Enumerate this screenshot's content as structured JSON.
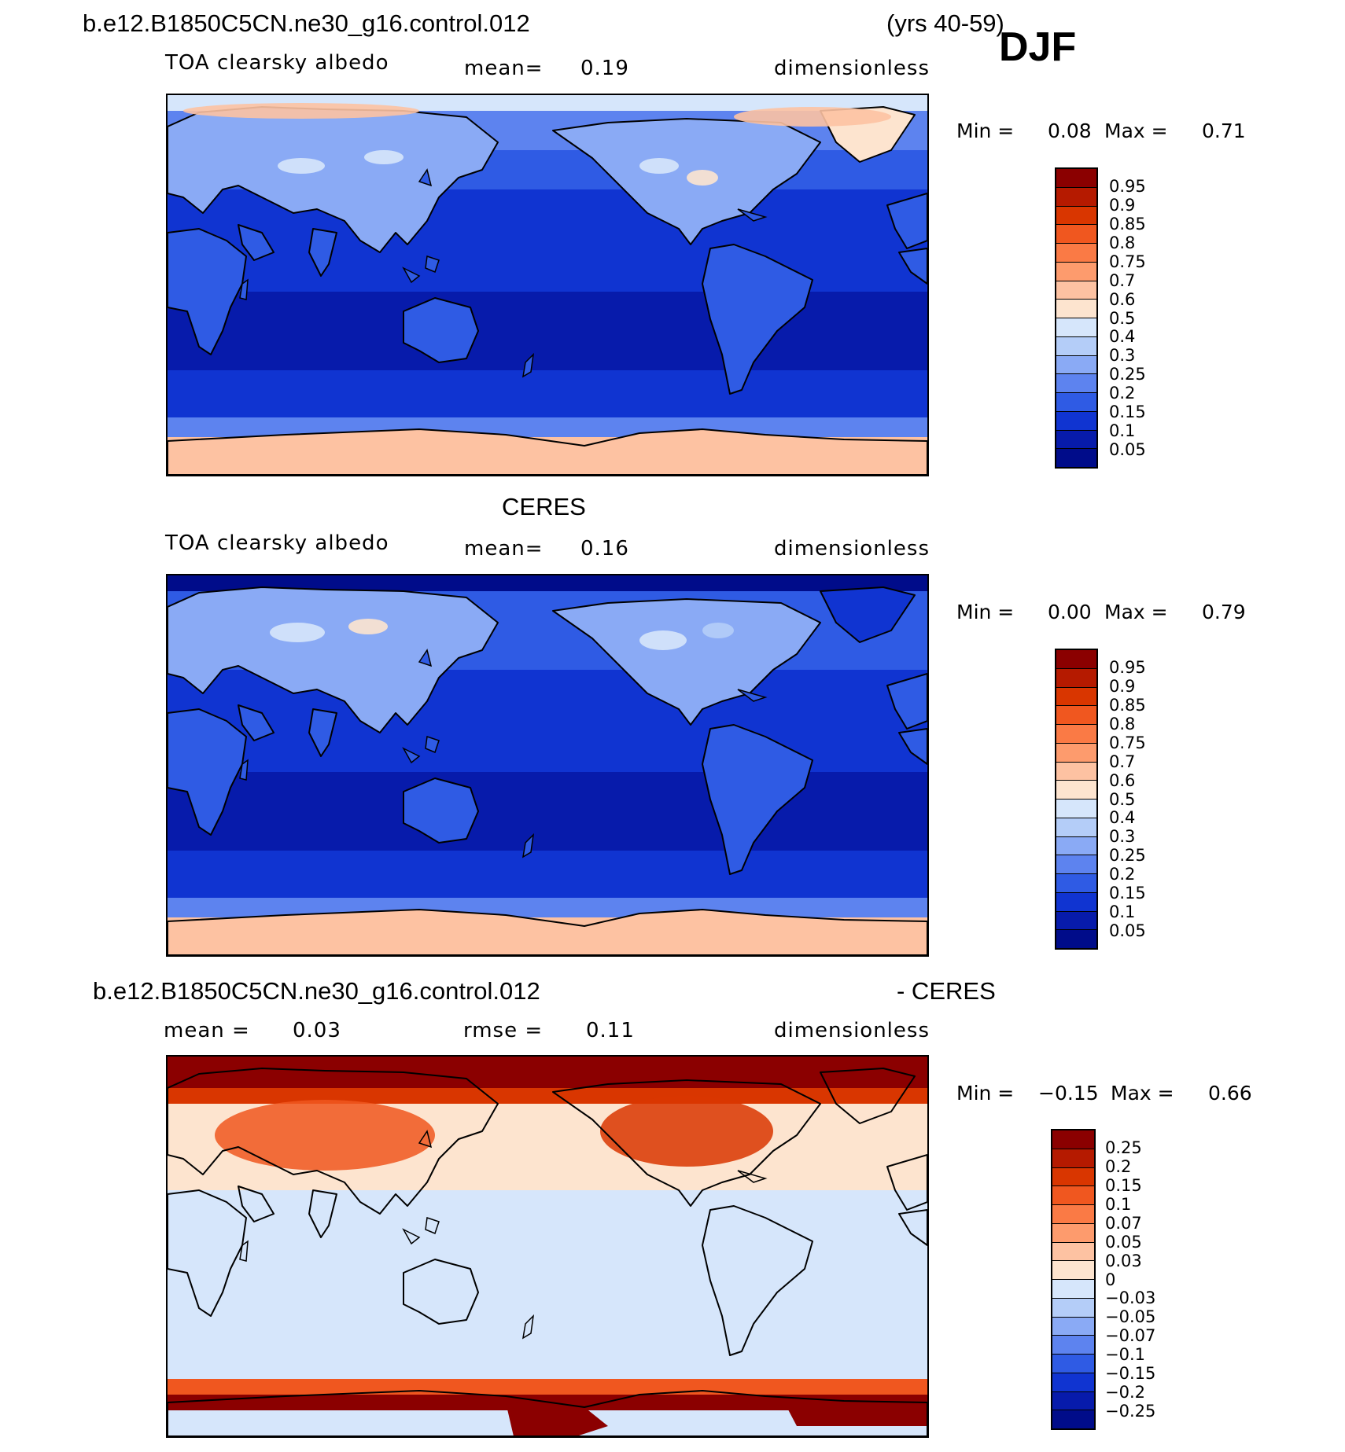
{
  "header": {
    "case_title": "b.e12.B1850C5CN.ne30_g16.control.012",
    "years": "(yrs 40-59)",
    "season": "DJF"
  },
  "panels": [
    {
      "id": "model",
      "heading": "",
      "variable": "TOA clearsky albedo",
      "stat1_label": "mean=",
      "stat1_value": "0.19",
      "stat2_label": "",
      "stat2_value": "",
      "units": "dimensionless",
      "min_label": "Min =",
      "min_value": "0.08",
      "max_label": "Max =",
      "max_value": "0.71",
      "colorbar_levels": [
        "0.95",
        "0.9",
        "0.85",
        "0.8",
        "0.75",
        "0.7",
        "0.6",
        "0.5",
        "0.4",
        "0.3",
        "0.25",
        "0.2",
        "0.15",
        "0.1",
        "0.05"
      ],
      "colorbar_colors": [
        "#8b0000",
        "#b51a00",
        "#d93600",
        "#f0571f",
        "#fa7a45",
        "#fd9b6d",
        "#fdc2a2",
        "#fde4cf",
        "#d6e6fb",
        "#b4cdf8",
        "#8aaaf5",
        "#5d83ef",
        "#2f5be4",
        "#1034d1",
        "#071bab",
        "#000c8a"
      ],
      "map_variant": "model"
    },
    {
      "id": "obs",
      "heading": "CERES",
      "variable": "TOA clearsky albedo",
      "stat1_label": "mean=",
      "stat1_value": "0.16",
      "stat2_label": "",
      "stat2_value": "",
      "units": "dimensionless",
      "min_label": "Min =",
      "min_value": "0.00",
      "max_label": "Max =",
      "max_value": "0.79",
      "colorbar_levels": [
        "0.95",
        "0.9",
        "0.85",
        "0.8",
        "0.75",
        "0.7",
        "0.6",
        "0.5",
        "0.4",
        "0.3",
        "0.25",
        "0.2",
        "0.15",
        "0.1",
        "0.05"
      ],
      "colorbar_colors": [
        "#8b0000",
        "#b51a00",
        "#d93600",
        "#f0571f",
        "#fa7a45",
        "#fd9b6d",
        "#fdc2a2",
        "#fde4cf",
        "#d6e6fb",
        "#b4cdf8",
        "#8aaaf5",
        "#5d83ef",
        "#2f5be4",
        "#1034d1",
        "#071bab",
        "#000c8a"
      ],
      "map_variant": "obs"
    },
    {
      "id": "diff",
      "heading": "b.e12.B1850C5CN.ne30_g16.control.012",
      "heading_suffix": "- CERES",
      "variable": "",
      "stat1_label": "mean =",
      "stat1_value": "0.03",
      "stat2_label": "rmse =",
      "stat2_value": "0.11",
      "units": "dimensionless",
      "min_label": "Min =",
      "min_value": "−0.15",
      "max_label": "Max =",
      "max_value": "0.66",
      "colorbar_levels": [
        "0.25",
        "0.2",
        "0.15",
        "0.1",
        "0.07",
        "0.05",
        "0.03",
        "0",
        "−0.03",
        "−0.05",
        "−0.07",
        "−0.1",
        "−0.15",
        "−0.2",
        "−0.25"
      ],
      "colorbar_colors": [
        "#8b0000",
        "#b51a00",
        "#d93600",
        "#f0571f",
        "#fa7a45",
        "#fd9b6d",
        "#fdc2a2",
        "#fde4cf",
        "#d6e6fb",
        "#b4cdf8",
        "#8aaaf5",
        "#5d83ef",
        "#2f5be4",
        "#1034d1",
        "#071bab",
        "#000c8a"
      ],
      "map_variant": "diff"
    }
  ]
}
